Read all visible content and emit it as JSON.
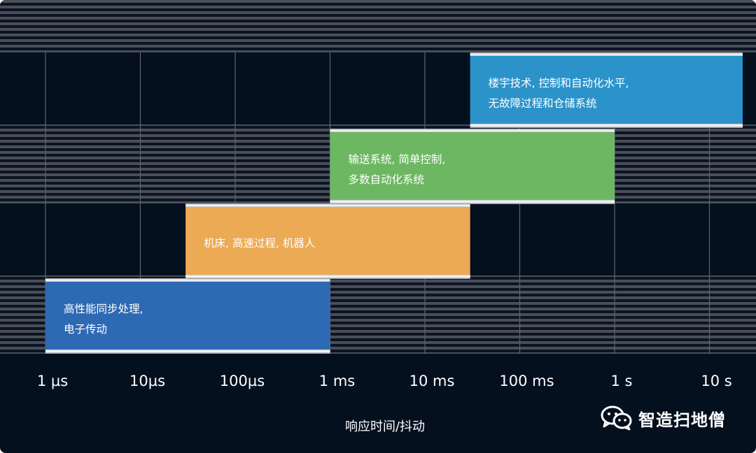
{
  "chart_data": {
    "type": "range-bar",
    "x_scale": "log",
    "x_ticks": [
      "1 µs",
      "10µs",
      "100µs",
      "1 ms",
      "10 ms",
      "100 ms",
      "1 s",
      "10 s"
    ],
    "x_tick_values_s": [
      1e-06,
      1e-05,
      0.0001,
      0.001,
      0.01,
      0.1,
      1,
      10
    ],
    "xlim_s": [
      5e-07,
      30
    ],
    "xlabel": "响应时间/抖动",
    "bars": [
      {
        "lines": [
          "高性能同步处理,",
          "电子传动"
        ],
        "start_s": 1e-06,
        "end_s": 0.001,
        "color": "#2e69b3",
        "row": 0
      },
      {
        "lines": [
          "机床, 高速过程, 机器人"
        ],
        "start_s": 3e-05,
        "end_s": 0.03,
        "color": "#ecaa55",
        "row": 1
      },
      {
        "lines": [
          "输送系统, 简单控制,",
          "多数自动化系统"
        ],
        "start_s": 0.001,
        "end_s": 1,
        "color": "#6db763",
        "row": 2
      },
      {
        "lines": [
          "楼宇技术, 控制和自动化水平,",
          "无故障过程和仓储系统"
        ],
        "start_s": 0.03,
        "end_s": 30,
        "color": "#2b93ca",
        "row": 3
      }
    ]
  },
  "watermark": {
    "text": "智造扫地僧",
    "icon": "wechat-icon"
  }
}
